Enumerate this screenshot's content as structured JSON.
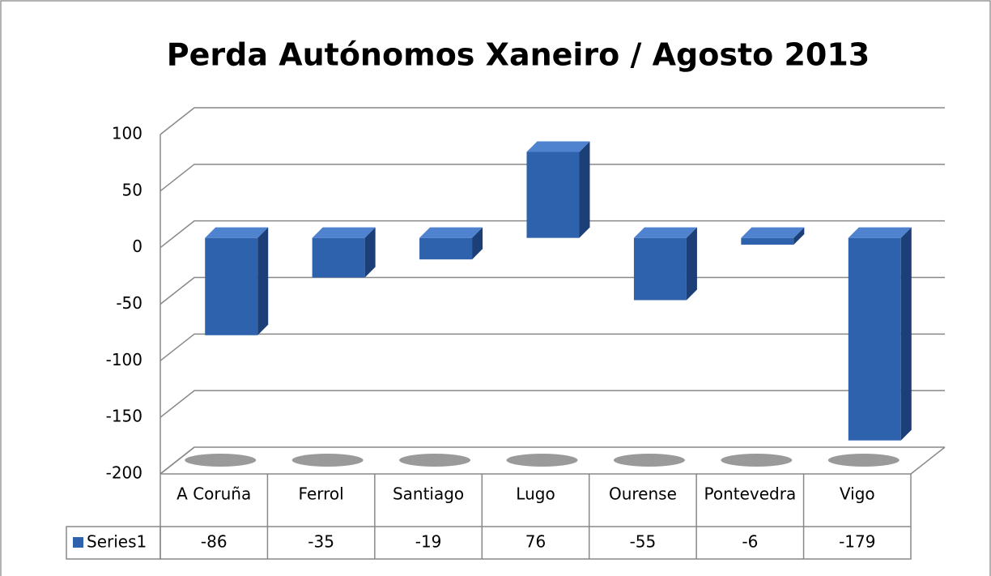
{
  "chart_data": {
    "type": "bar3d",
    "title": "Perda Autónomos Xaneiro / Agosto 2013",
    "categories": [
      "A Coruña",
      "Ferrol",
      "Santiago",
      "Lugo",
      "Ourense",
      "Pontevedra",
      "Vigo"
    ],
    "series": [
      {
        "name": "Series1",
        "color": "#2f62ad",
        "values": [
          -86,
          -35,
          -19,
          76,
          -55,
          -6,
          -179
        ]
      }
    ],
    "ylim": [
      -200,
      100
    ],
    "yticks": [
      -200,
      -150,
      -100,
      -50,
      0,
      50,
      100
    ],
    "grid": true,
    "data_table": true
  }
}
